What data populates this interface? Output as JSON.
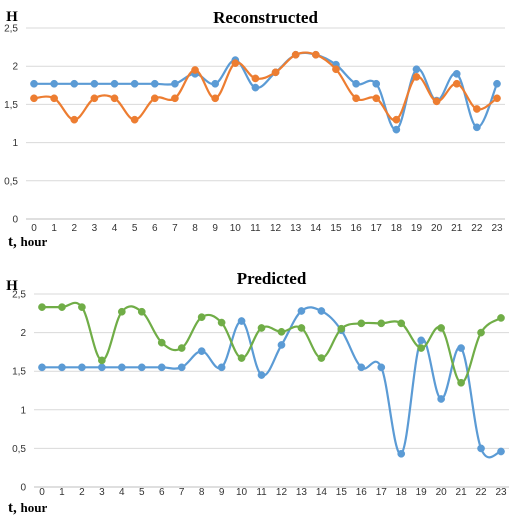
{
  "chart_data": [
    {
      "type": "line",
      "title": "Reconstructed",
      "ylabel": "H",
      "xlabel_prefix": "t,",
      "xlabel": "hour",
      "x": [
        0,
        1,
        2,
        3,
        4,
        5,
        6,
        7,
        8,
        9,
        10,
        11,
        12,
        13,
        14,
        15,
        16,
        17,
        18,
        19,
        20,
        21,
        22,
        23
      ],
      "ylim": [
        0,
        2.5
      ],
      "yticks": [
        "0",
        "0,5",
        "1",
        "1,5",
        "2",
        "2,5"
      ],
      "grid": true,
      "series": [
        {
          "color": "#5b9bd5",
          "values": [
            1.77,
            1.77,
            1.77,
            1.77,
            1.77,
            1.77,
            1.77,
            1.77,
            1.9,
            1.77,
            2.08,
            1.72,
            1.92,
            2.15,
            2.15,
            2.02,
            1.77,
            1.77,
            1.17,
            1.96,
            1.55,
            1.9,
            1.2,
            1.77
          ]
        },
        {
          "color": "#ed7d31",
          "values": [
            1.58,
            1.58,
            1.3,
            1.58,
            1.58,
            1.3,
            1.58,
            1.58,
            1.95,
            1.58,
            2.04,
            1.84,
            1.92,
            2.15,
            2.15,
            1.96,
            1.58,
            1.58,
            1.3,
            1.86,
            1.54,
            1.77,
            1.44,
            1.58
          ]
        }
      ]
    },
    {
      "type": "line",
      "title": "Predicted",
      "ylabel": "H",
      "xlabel_prefix": "t,",
      "xlabel": "hour",
      "x": [
        0,
        1,
        2,
        3,
        4,
        5,
        6,
        7,
        8,
        9,
        10,
        11,
        12,
        13,
        14,
        15,
        16,
        17,
        18,
        19,
        20,
        21,
        22,
        23
      ],
      "ylim": [
        0,
        2.5
      ],
      "yticks": [
        "0",
        "0,5",
        "1",
        "1,5",
        "2",
        "2,5"
      ],
      "grid": true,
      "series": [
        {
          "color": "#5b9bd5",
          "values": [
            1.55,
            1.55,
            1.55,
            1.55,
            1.55,
            1.55,
            1.55,
            1.55,
            1.76,
            1.55,
            2.15,
            1.45,
            1.84,
            2.28,
            2.28,
            2.03,
            1.55,
            1.55,
            0.43,
            1.9,
            1.14,
            1.8,
            0.5,
            0.46
          ]
        },
        {
          "color": "#70ad47",
          "values": [
            2.33,
            2.33,
            2.33,
            1.64,
            2.27,
            2.27,
            1.87,
            1.8,
            2.2,
            2.13,
            1.67,
            2.06,
            2.01,
            2.06,
            1.67,
            2.05,
            2.12,
            2.12,
            2.12,
            1.8,
            2.06,
            1.35,
            2.0,
            2.19
          ]
        }
      ]
    }
  ]
}
